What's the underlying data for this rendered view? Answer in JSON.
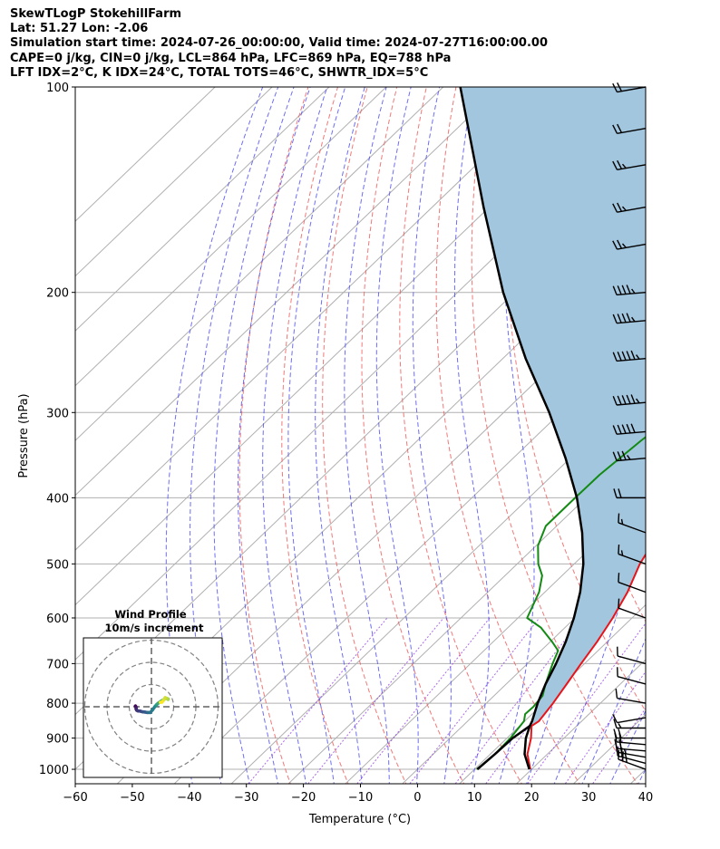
{
  "header": {
    "line1": "SkewTLogP StokehillFarm",
    "line2": "Lat: 51.27   Lon: -2.06",
    "line3": "Simulation start time: 2024-07-26_00:00:00, Valid time: 2024-07-27T16:00:00.00",
    "line4": "CAPE=0 j/kg, CIN=0 j/kg, LCL=864 hPa, LFC=869 hPa, EQ=788 hPa",
    "line5": "LFT IDX=2$^\\circ$C, K IDX=24$^\\circ$C, TOTAL TOTS=46$^\\circ$C, SHWTR_IDX=5$^\\circ$C"
  },
  "chart_data": {
    "type": "skew-t log-p",
    "xlabel": "Temperature ($^\\circ$C)",
    "ylabel": "Pressure (hPa)",
    "xlim": [
      -60,
      40
    ],
    "ylim": [
      1050,
      100
    ],
    "x_ticks": [
      "−60",
      "−50",
      "−40",
      "−30",
      "−20",
      "−10",
      "0",
      "10",
      "20",
      "30",
      "40"
    ],
    "y_ticks": [
      "1000",
      "900",
      "800",
      "700",
      "600",
      "500",
      "400",
      "300",
      "200",
      "100"
    ],
    "y_tick_values": [
      1000,
      900,
      800,
      700,
      600,
      500,
      400,
      300,
      200,
      100
    ],
    "grid": true,
    "colors": {
      "temperature": "#e8141a",
      "dewpoint": "#138a13",
      "parcel": "#000000",
      "cape_fill": "#a3c6df",
      "dry_adiabat": "#f06060",
      "moist_adiabat": "#4a4af0",
      "mixing_ratio": "#8a2be2"
    },
    "series": [
      {
        "name": "Temperature",
        "pressure": [
          1000,
          950,
          900,
          864,
          850,
          800,
          750,
          700,
          650,
          600,
          550,
          500,
          450,
          400,
          380,
          350,
          320,
          300,
          280,
          250,
          230,
          210,
          200,
          185,
          170,
          160,
          150,
          140,
          130,
          120,
          110,
          100
        ],
        "temperature": [
          19.8,
          16.5,
          14.2,
          12.1,
          12.5,
          11.7,
          10.6,
          9.4,
          8.2,
          6.6,
          4.5,
          1.5,
          -0.8,
          -0.8,
          -0.3,
          0.4,
          0.6,
          0.7,
          0.4,
          0.0,
          0.1,
          1.0,
          1.6,
          3.2,
          5.9,
          6.6,
          8.2,
          10.5,
          12.8,
          14.8,
          16.8,
          17.5
        ]
      },
      {
        "name": "Dewpoint",
        "pressure": [
          1000,
          950,
          900,
          850,
          830,
          810,
          780,
          750,
          700,
          670,
          650,
          620,
          600,
          550,
          520,
          500,
          470,
          440,
          400,
          370,
          330,
          300,
          280,
          260,
          230,
          210,
          200,
          185,
          170,
          160,
          150,
          140,
          130,
          120,
          100
        ],
        "temperature": [
          10.4,
          10.8,
          10.6,
          9.9,
          8.8,
          8.9,
          8.5,
          6.9,
          4.4,
          3.0,
          0.3,
          -4.2,
          -8.4,
          -11.0,
          -13.5,
          -16.3,
          -19.7,
          -21.9,
          -21.9,
          -21.8,
          -20.8,
          -19.6,
          -18.3,
          -16.6,
          -13.9,
          -12.5,
          -11.6,
          -10.2,
          -9.5,
          -8.4,
          -9.3,
          -6.3,
          -3.8,
          -0.2,
          6.8
        ]
      },
      {
        "name": "Parcel",
        "pressure": [
          1000,
          950,
          900,
          864,
          850,
          800,
          750,
          700,
          650,
          600,
          550,
          500,
          450,
          400,
          350,
          300,
          250,
          200,
          150,
          100
        ],
        "temperature": [
          19.6,
          16.0,
          13.3,
          11.8,
          11.3,
          9.0,
          6.9,
          5.0,
          2.7,
          -0.2,
          -3.8,
          -8.4,
          -14.3,
          -21.6,
          -30.8,
          -42.0,
          -56.0,
          -72.0,
          -91.0,
          -117.0
        ]
      },
      {
        "name": "Dewpoint (near-surface)",
        "pressure": [
          1000,
          950,
          900,
          864
        ],
        "temperature": [
          10.5,
          10.8,
          11.0,
          11.8
        ]
      }
    ],
    "wind_barbs": {
      "pressure": [
        1000,
        980,
        960,
        940,
        920,
        900,
        870,
        840,
        800,
        750,
        700,
        600,
        550,
        500,
        450,
        400,
        350,
        320,
        290,
        250,
        220,
        200,
        170,
        150,
        130,
        115,
        100
      ],
      "speed_kt": [
        25,
        25,
        25,
        20,
        20,
        20,
        15,
        10,
        10,
        10,
        10,
        10,
        10,
        15,
        15,
        20,
        35,
        50,
        55,
        55,
        45,
        45,
        25,
        25,
        25,
        20,
        20
      ],
      "direction_deg": [
        290,
        285,
        280,
        275,
        275,
        270,
        270,
        260,
        280,
        285,
        285,
        290,
        290,
        290,
        290,
        270,
        265,
        265,
        265,
        265,
        265,
        265,
        260,
        260,
        260,
        260,
        260
      ]
    },
    "hodograph": {
      "title_line1": "Wind Profile",
      "title_line2": "10m/s increment",
      "u": [
        -7.2,
        -7.0,
        -6.9,
        -6.9,
        -6.6,
        -6.0,
        -5.0,
        -3.9,
        -3.0,
        -1.9,
        -1.5,
        -0.5,
        0.5,
        1.6,
        1.9,
        2.4,
        2.6,
        3.2,
        4.2,
        5.2,
        5.8,
        6.2,
        6.9,
        7.5,
        7.5,
        7.0,
        6.2,
        5.4,
        4.8,
        4.0
      ],
      "v": [
        0.4,
        0.0,
        -0.6,
        -1.0,
        -1.6,
        -1.9,
        -2.0,
        -2.3,
        -2.4,
        -2.6,
        -2.6,
        -2.6,
        -1.4,
        0.1,
        0.4,
        1.0,
        1.2,
        1.7,
        2.4,
        3.0,
        3.4,
        3.9,
        3.7,
        3.5,
        3.3,
        3.7,
        4.1,
        2.9,
        2.1,
        2.0
      ]
    }
  }
}
